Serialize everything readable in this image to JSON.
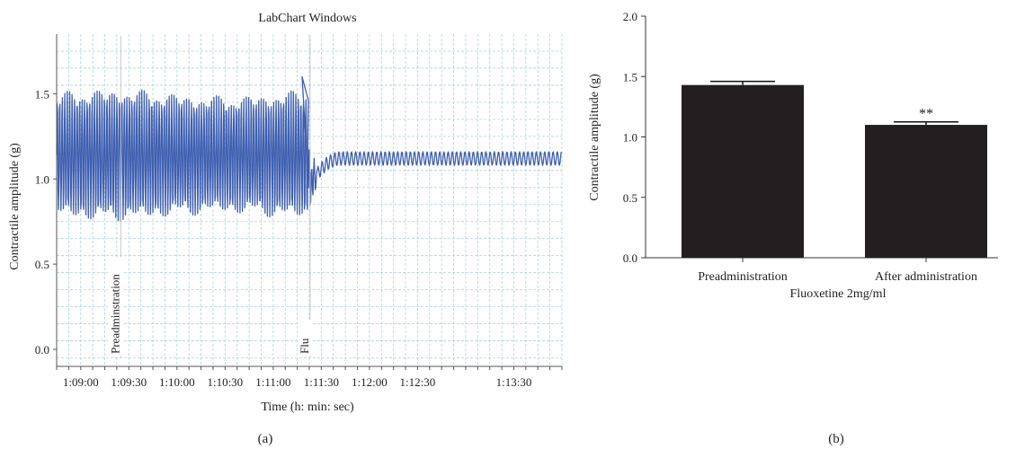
{
  "panel_a": {
    "caption": "(a)",
    "title": "LabChart Windows",
    "xlabel": "Time (h: min: sec)",
    "ylabel": "Contractile amplitude (g)",
    "x_ticks": [
      "1:09:00",
      "1:09:30",
      "1:10:00",
      "1:10:30",
      "1:11:00",
      "1:11:30",
      "1:12:00",
      "1:12:30",
      "1:13:30"
    ],
    "y_ticks": [
      "0.0",
      "0.5",
      "1.0",
      "1.5"
    ],
    "markers": [
      "Preadminstration",
      "Flu"
    ],
    "trace_color": "#3f5fb0",
    "grid_color": "#a9d4dd"
  },
  "panel_b": {
    "caption": "(b)",
    "significance": "**",
    "bar_color": "#231f20"
  },
  "chart_data": [
    {
      "type": "line",
      "title": "LabChart Windows",
      "xlabel": "Time (h: min: sec)",
      "ylabel": "Contractile amplitude (g)",
      "x_ticks": [
        "1:09:00",
        "1:09:30",
        "1:10:00",
        "1:10:30",
        "1:11:00",
        "1:11:30",
        "1:12:00",
        "1:12:30",
        "1:13:30"
      ],
      "ylim": [
        -0.1,
        1.85
      ],
      "grid": true,
      "series": [
        {
          "segments": [
            {
              "x_range": [
                "1:08:45",
                "1:11:22"
              ],
              "oscillation_min": 0.8,
              "oscillation_max": 1.48,
              "baseline": 1.14
            },
            {
              "x_range": [
                "1:11:22",
                "1:14:00"
              ],
              "baseline_start": 0.95,
              "baseline_end": 1.12,
              "oscillation_amplitude": 0.04
            }
          ],
          "peak": {
            "x": "1:11:18",
            "y": 1.6
          }
        }
      ],
      "annotations": [
        {
          "text": "Preadminstration",
          "x": "1:09:25"
        },
        {
          "text": "Flu",
          "x": "1:11:23"
        }
      ]
    },
    {
      "type": "bar",
      "categories": [
        "Preadministration",
        "After administration"
      ],
      "values": [
        1.43,
        1.1
      ],
      "errors": [
        0.03,
        0.025
      ],
      "xlabel": "Fluoxetine 2mg/ml",
      "ylabel": "Contractile amplitude (g)",
      "y_ticks": [
        "0.0",
        "0.5",
        "1.0",
        "1.5",
        "2.0"
      ],
      "ylim": [
        0,
        2.0
      ],
      "annotations": [
        {
          "text": "**",
          "category": "After administration"
        }
      ]
    }
  ]
}
